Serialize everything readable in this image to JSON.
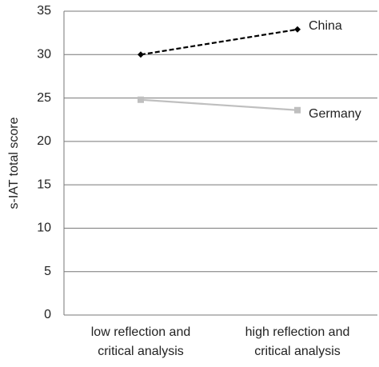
{
  "chart_data": {
    "type": "line",
    "y_label": "s-IAT total score",
    "categories": [
      [
        "low reflection and",
        "critical analysis"
      ],
      [
        "high reflection and",
        "critical analysis"
      ]
    ],
    "series": [
      {
        "name": "China",
        "color": "#000000",
        "dash": true,
        "marker": "diamond",
        "values": [
          30,
          32.9
        ]
      },
      {
        "name": "Germany",
        "color": "#bfbfbf",
        "dash": false,
        "marker": "square",
        "values": [
          24.8,
          23.6
        ]
      }
    ],
    "ylim": [
      0,
      35
    ],
    "yticks": [
      0,
      5,
      10,
      15,
      20,
      25,
      30,
      35
    ],
    "grid": true
  }
}
